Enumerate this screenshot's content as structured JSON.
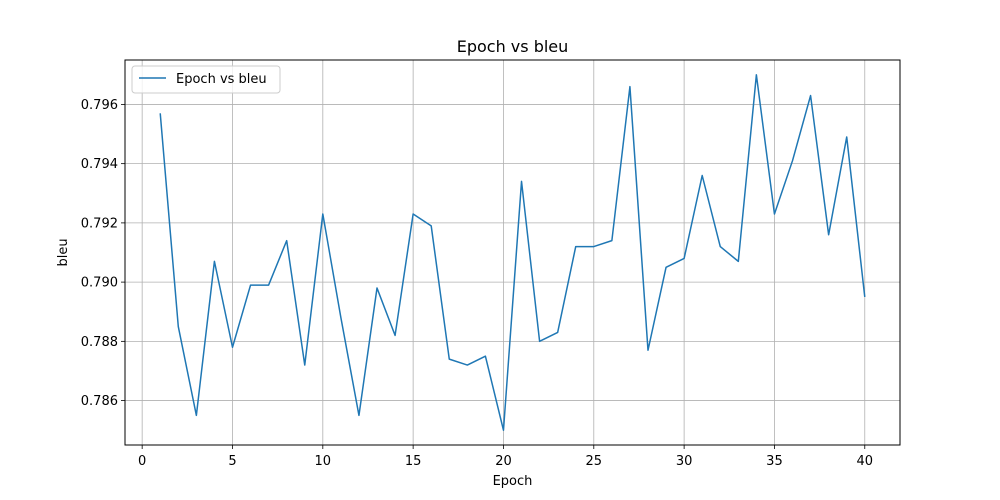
{
  "chart_data": {
    "type": "line",
    "title": "Epoch vs bleu",
    "xlabel": "Epoch",
    "ylabel": "bleu",
    "xlim": [
      -0.95,
      41.95
    ],
    "ylim": [
      0.7845,
      0.7975
    ],
    "xticks": [
      0,
      5,
      10,
      15,
      20,
      25,
      30,
      35,
      40
    ],
    "xtick_labels": [
      "0",
      "5",
      "10",
      "15",
      "20",
      "25",
      "30",
      "35",
      "40"
    ],
    "yticks": [
      0.786,
      0.788,
      0.79,
      0.792,
      0.794,
      0.796
    ],
    "ytick_labels": [
      "0.786",
      "0.788",
      "0.790",
      "0.792",
      "0.794",
      "0.796"
    ],
    "grid": true,
    "legend": {
      "position": "top-left"
    },
    "series": [
      {
        "name": "Epoch vs bleu",
        "color": "#1f77b4",
        "x": [
          1,
          2,
          3,
          4,
          5,
          6,
          7,
          8,
          9,
          10,
          11,
          12,
          13,
          14,
          15,
          16,
          17,
          18,
          19,
          20,
          21,
          22,
          23,
          24,
          25,
          26,
          27,
          28,
          29,
          30,
          31,
          32,
          33,
          34,
          35,
          36,
          37,
          38,
          39,
          40
        ],
        "y": [
          0.7957,
          0.7885,
          0.7855,
          0.7907,
          0.7878,
          0.7899,
          0.7899,
          0.7914,
          0.7872,
          0.7923,
          0.7888,
          0.7855,
          0.7898,
          0.7882,
          0.7923,
          0.7919,
          0.7874,
          0.7872,
          0.7875,
          0.785,
          0.7934,
          0.788,
          0.7883,
          0.7912,
          0.7912,
          0.7914,
          0.7966,
          0.7877,
          0.7905,
          0.7908,
          0.7936,
          0.7912,
          0.7907,
          0.797,
          0.7923,
          0.7941,
          0.7963,
          0.7916,
          0.7949,
          0.7895
        ]
      }
    ]
  }
}
